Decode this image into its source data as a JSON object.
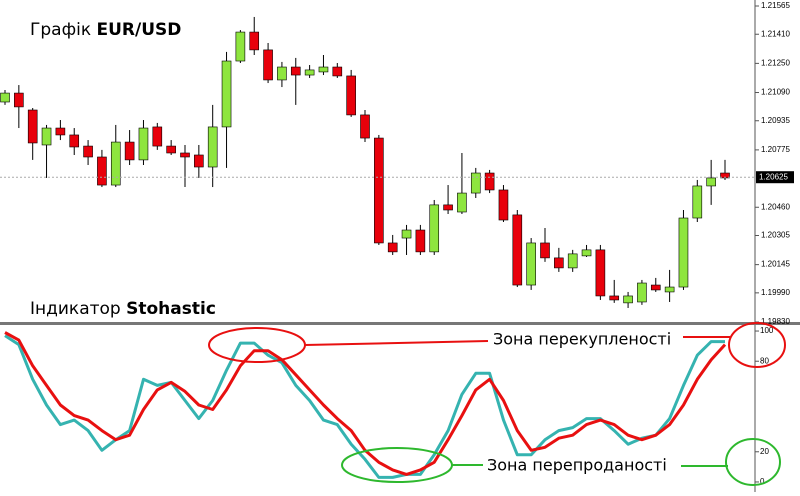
{
  "chart_data": [
    {
      "type": "candlestick",
      "title_parts": [
        "Графік",
        "EUR/USD"
      ],
      "up_color": "#8ee53f",
      "down_color": "#e8000b",
      "open": [
        1.21038,
        1.21087,
        1.20994,
        1.20802,
        1.20895,
        1.20857,
        1.20796,
        1.20736,
        1.20582,
        1.20818,
        1.2072,
        1.20901,
        1.20796,
        1.20758,
        1.20747,
        1.20681,
        1.20901,
        1.21263,
        1.21422,
        1.21324,
        1.21159,
        1.2123,
        1.21186,
        1.21203,
        1.2123,
        1.21181,
        1.20967,
        1.2084,
        1.20264,
        1.20291,
        1.20335,
        1.20215,
        1.20473,
        1.20434,
        1.20538,
        1.20648,
        1.20555,
        1.20418,
        1.20033,
        1.20264,
        1.20182,
        1.20127,
        1.20193,
        1.20226,
        1.19973,
        1.19935,
        1.1994,
        1.20033,
        1.19995,
        1.20022,
        1.20401,
        1.20577,
        1.20648
      ],
      "high": [
        1.21104,
        1.21131,
        1.21005,
        1.20912,
        1.20939,
        1.20895,
        1.20829,
        1.20775,
        1.20912,
        1.20884,
        1.20939,
        1.20923,
        1.20829,
        1.20802,
        1.20802,
        1.21022,
        1.21313,
        1.21433,
        1.21505,
        1.21362,
        1.21258,
        1.2128,
        1.21241,
        1.21296,
        1.21252,
        1.21214,
        1.20994,
        1.20857,
        1.20308,
        1.20363,
        1.20363,
        1.205,
        1.20582,
        1.20758,
        1.20676,
        1.20665,
        1.20582,
        1.20445,
        1.20291,
        1.20346,
        1.20237,
        1.20226,
        1.20253,
        1.20253,
        1.20061,
        1.19995,
        1.20061,
        1.20072,
        1.20116,
        1.20445,
        1.2061,
        1.2072,
        1.2072
      ],
      "low": [
        1.21022,
        1.20895,
        1.2072,
        1.20621,
        1.20829,
        1.20747,
        1.20692,
        1.20571,
        1.20571,
        1.20692,
        1.20692,
        1.20775,
        1.20747,
        1.20571,
        1.20621,
        1.20571,
        1.20676,
        1.21252,
        1.21296,
        1.21142,
        1.2112,
        1.21022,
        1.2117,
        1.21186,
        1.2117,
        1.20956,
        1.20818,
        1.20253,
        1.20198,
        1.20198,
        1.20198,
        1.20198,
        1.20423,
        1.20423,
        1.20511,
        1.20538,
        1.20379,
        1.20022,
        1.20006,
        1.2016,
        1.20105,
        1.20105,
        1.20187,
        1.19951,
        1.19935,
        1.19907,
        1.19924,
        1.19995,
        1.1994,
        1.20006,
        1.20379,
        1.20473,
        1.2061
      ],
      "close": [
        1.21087,
        1.21011,
        1.20813,
        1.20895,
        1.20857,
        1.20791,
        1.20736,
        1.20582,
        1.20818,
        1.2072,
        1.20895,
        1.20796,
        1.20758,
        1.20736,
        1.20681,
        1.20901,
        1.21263,
        1.21422,
        1.21324,
        1.21159,
        1.2123,
        1.21186,
        1.21214,
        1.2123,
        1.21181,
        1.20967,
        1.2084,
        1.20264,
        1.20215,
        1.20335,
        1.20215,
        1.20473,
        1.20445,
        1.20538,
        1.20648,
        1.20555,
        1.2039,
        1.20033,
        1.20264,
        1.20182,
        1.20127,
        1.20204,
        1.20226,
        1.19973,
        1.19951,
        1.19973,
        1.20044,
        1.20006,
        1.20022,
        1.20401,
        1.20577,
        1.20621,
        1.20621
      ],
      "ylim": [
        1.1983,
        1.21598
      ],
      "yticks": [
        1.21565,
        {
          "value": 1.2141,
          "label": "1.21410"
        },
        {
          "value": 1.2125,
          "label": "1.21250"
        },
        {
          "value": 1.2109,
          "label": "1.21090"
        },
        1.20935,
        1.20775,
        {
          "value": 1.2046,
          "label": "1.20460"
        },
        1.20305,
        1.20145,
        {
          "value": 1.1999,
          "label": "1.19990"
        },
        {
          "value": 1.1983,
          "label": "1.19830"
        }
      ],
      "last_price": 1.20625
    },
    {
      "type": "line",
      "title_parts": [
        "Індикатор",
        "Stohastic"
      ],
      "series": [
        {
          "color": "#35b3b0",
          "values": [
            97,
            91,
            68,
            51,
            38,
            41,
            34,
            21,
            28,
            34,
            68,
            64,
            66,
            54,
            42,
            54,
            74,
            92,
            92,
            84,
            79,
            64,
            54,
            41,
            38,
            25,
            15,
            3,
            3,
            5,
            5,
            18,
            34,
            58,
            72,
            72,
            41,
            18,
            18,
            28,
            34,
            36,
            42,
            42,
            34,
            25,
            29,
            31,
            42,
            64,
            84,
            93,
            93
          ]
        },
        {
          "color": "#e81010",
          "values": [
            99,
            94,
            77,
            64,
            51,
            44,
            41,
            34,
            28,
            31,
            48,
            61,
            66,
            60,
            51,
            48,
            61,
            77,
            87,
            87,
            81,
            71,
            61,
            51,
            42,
            34,
            21,
            13,
            8,
            5,
            8,
            13,
            28,
            44,
            61,
            68,
            54,
            34,
            21,
            23,
            29,
            31,
            38,
            41,
            38,
            31,
            28,
            31,
            38,
            51,
            68,
            81,
            91
          ]
        }
      ],
      "ylim": [
        -4,
        104
      ],
      "yticks": [
        100,
        80,
        20,
        0
      ],
      "annotations": [
        "Зона перекупленості",
        "Зона перепроданості"
      ]
    }
  ]
}
